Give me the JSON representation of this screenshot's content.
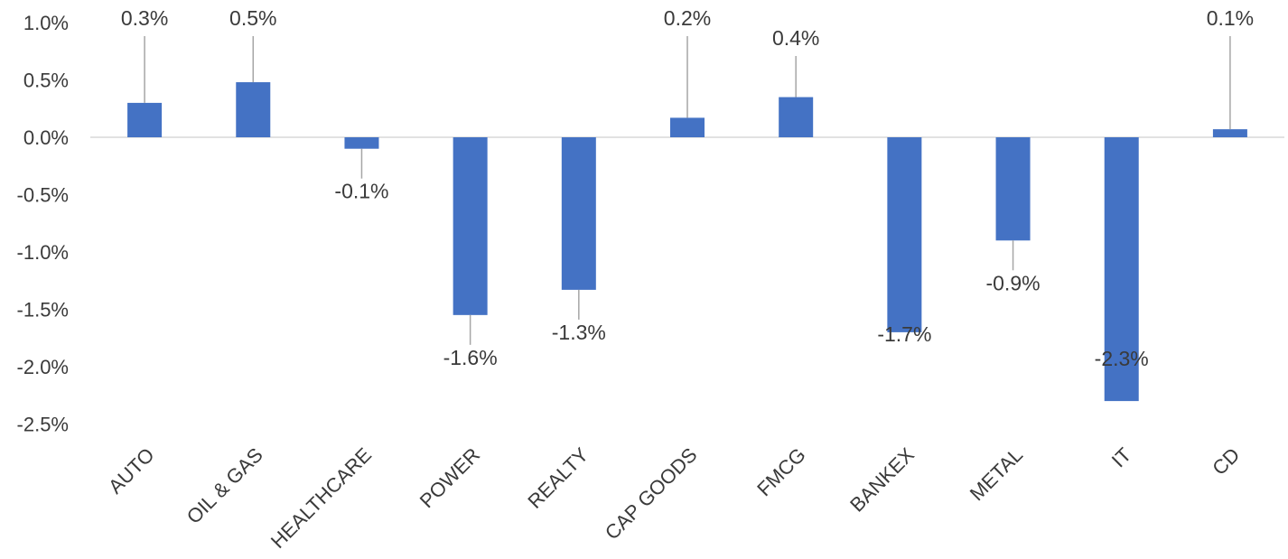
{
  "chart_data": {
    "type": "bar",
    "categories": [
      "AUTO",
      "OIL & GAS",
      "HEALTHCARE",
      "POWER",
      "REALTY",
      "CAP GOODS",
      "FMCG",
      "BANKEX",
      "METAL",
      "IT",
      "CD"
    ],
    "values": [
      0.3,
      0.48,
      -0.1,
      -1.55,
      -1.33,
      0.17,
      0.35,
      -1.7,
      -0.9,
      -2.3,
      0.07
    ],
    "data_labels": [
      "0.3%",
      "0.5%",
      "-0.1%",
      "-1.6%",
      "-1.3%",
      "0.2%",
      "0.4%",
      "-1.7%",
      "-0.9%",
      "-2.3%",
      "0.1%"
    ],
    "y_ticks": [
      "1.0%",
      "0.5%",
      "0.0%",
      "-0.5%",
      "-1.0%",
      "-1.5%",
      "-2.0%",
      "-2.5%"
    ],
    "y_tick_values": [
      1.0,
      0.5,
      0.0,
      -0.5,
      -1.0,
      -1.5,
      -2.0,
      -2.5
    ],
    "ylim": [
      -2.5,
      1.0
    ],
    "bar_color": "#4472C4",
    "grid": false,
    "legend": "none",
    "title": "",
    "xlabel": "",
    "ylabel": ""
  }
}
